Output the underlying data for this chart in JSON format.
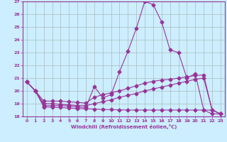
{
  "xlabel": "Windchill (Refroidissement éolien,°C)",
  "bg_color": "#cceeff",
  "grid_color": "#aabbbb",
  "line_color": "#993399",
  "xlim": [
    -0.5,
    23.5
  ],
  "ylim": [
    18,
    27
  ],
  "yticks": [
    18,
    19,
    20,
    21,
    22,
    23,
    24,
    25,
    26,
    27
  ],
  "xticks": [
    0,
    1,
    2,
    3,
    4,
    5,
    6,
    7,
    8,
    9,
    10,
    11,
    12,
    13,
    14,
    15,
    16,
    17,
    18,
    19,
    20,
    21,
    22,
    23
  ],
  "curve1_x": [
    0,
    1,
    2,
    3,
    4,
    5,
    6,
    7,
    8,
    9,
    10,
    11,
    12,
    13,
    14,
    15,
    16,
    17,
    18,
    19,
    20,
    21,
    22,
    23
  ],
  "curve1_y": [
    20.7,
    20.0,
    18.85,
    18.85,
    18.85,
    18.8,
    18.75,
    18.7,
    20.35,
    19.45,
    19.7,
    21.5,
    23.1,
    24.9,
    27.0,
    26.75,
    25.4,
    23.2,
    23.0,
    21.0,
    21.35,
    18.5,
    18.2,
    18.2
  ],
  "curve2_x": [
    0,
    1,
    2,
    3,
    4,
    5,
    6,
    7,
    8,
    9,
    10,
    11,
    12,
    13,
    14,
    15,
    16,
    17,
    18,
    19,
    20,
    21,
    22,
    23
  ],
  "curve2_y": [
    20.7,
    20.0,
    19.2,
    19.2,
    19.2,
    19.15,
    19.1,
    19.05,
    19.5,
    19.7,
    19.85,
    20.0,
    20.2,
    20.4,
    20.6,
    20.75,
    20.85,
    20.9,
    21.0,
    21.1,
    21.2,
    21.25,
    18.5,
    18.2
  ],
  "curve3_x": [
    0,
    1,
    2,
    3,
    4,
    5,
    6,
    7,
    8,
    9,
    10,
    11,
    12,
    13,
    14,
    15,
    16,
    17,
    18,
    19,
    20,
    21,
    22,
    23
  ],
  "curve3_y": [
    20.7,
    20.0,
    19.0,
    19.0,
    18.95,
    18.9,
    18.85,
    18.85,
    19.0,
    19.15,
    19.3,
    19.5,
    19.65,
    19.8,
    20.0,
    20.15,
    20.3,
    20.45,
    20.6,
    20.75,
    20.9,
    21.0,
    18.5,
    18.2
  ],
  "curve4_x": [
    0,
    1,
    2,
    3,
    4,
    5,
    6,
    7,
    8,
    9,
    10,
    11,
    12,
    13,
    14,
    15,
    16,
    17,
    18,
    19,
    20,
    21,
    22,
    23
  ],
  "curve4_y": [
    20.7,
    20.0,
    18.75,
    18.72,
    18.7,
    18.65,
    18.62,
    18.6,
    18.58,
    18.55,
    18.53,
    18.52,
    18.5,
    18.5,
    18.5,
    18.5,
    18.5,
    18.5,
    18.5,
    18.5,
    18.5,
    18.5,
    18.5,
    18.2
  ]
}
